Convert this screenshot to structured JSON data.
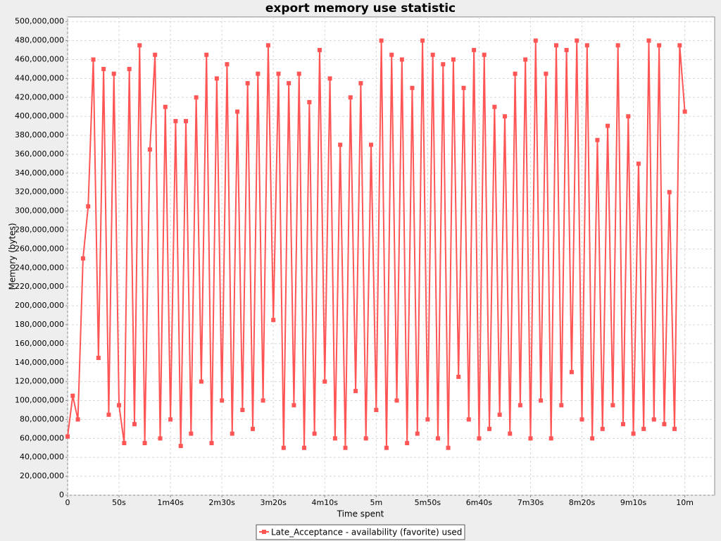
{
  "chart_data": {
    "type": "line",
    "title": "export memory use statistic",
    "x_label": "Time spent",
    "y_label": "Memory (bytes)",
    "x": [
      0,
      5,
      10,
      15,
      20,
      25,
      30,
      35,
      40,
      45,
      50,
      55,
      60,
      65,
      70,
      75,
      80,
      85,
      90,
      95,
      100,
      105,
      110,
      115,
      120,
      125,
      130,
      135,
      140,
      145,
      150,
      155,
      160,
      165,
      170,
      175,
      180,
      185,
      190,
      195,
      200,
      205,
      210,
      215,
      220,
      225,
      230,
      235,
      240,
      245,
      250,
      255,
      260,
      265,
      270,
      275,
      280,
      285,
      290,
      295,
      300,
      305,
      310,
      315,
      320,
      325,
      330,
      335,
      340,
      345,
      350,
      355,
      360,
      365,
      370,
      375,
      380,
      385,
      390,
      395,
      400,
      405,
      410,
      415,
      420,
      425,
      430,
      435,
      440,
      445,
      450,
      455,
      460,
      465,
      470,
      475,
      480,
      485,
      490,
      495,
      500,
      505,
      510,
      515,
      520,
      525,
      530,
      535,
      540,
      545,
      550,
      555,
      560,
      565,
      570,
      575,
      580,
      585,
      590,
      595,
      600
    ],
    "series": [
      {
        "name": "Late_Acceptance - availability (favorite) used",
        "color": "#ff5555",
        "values": [
          62000000,
          105000000,
          80000000,
          250000000,
          305000000,
          460000000,
          145000000,
          450000000,
          85000000,
          445000000,
          95000000,
          55000000,
          450000000,
          75000000,
          475000000,
          55000000,
          365000000,
          465000000,
          60000000,
          410000000,
          80000000,
          395000000,
          52000000,
          395000000,
          65000000,
          420000000,
          120000000,
          465000000,
          55000000,
          440000000,
          100000000,
          455000000,
          65000000,
          405000000,
          90000000,
          435000000,
          70000000,
          445000000,
          100000000,
          475000000,
          185000000,
          445000000,
          50000000,
          435000000,
          95000000,
          445000000,
          50000000,
          415000000,
          65000000,
          470000000,
          120000000,
          440000000,
          60000000,
          370000000,
          50000000,
          420000000,
          110000000,
          435000000,
          60000000,
          370000000,
          90000000,
          480000000,
          50000000,
          465000000,
          100000000,
          460000000,
          55000000,
          430000000,
          65000000,
          480000000,
          80000000,
          465000000,
          60000000,
          455000000,
          50000000,
          460000000,
          125000000,
          430000000,
          80000000,
          470000000,
          60000000,
          465000000,
          70000000,
          410000000,
          85000000,
          400000000,
          65000000,
          445000000,
          95000000,
          460000000,
          60000000,
          480000000,
          100000000,
          445000000,
          60000000,
          475000000,
          95000000,
          470000000,
          130000000,
          480000000,
          80000000,
          475000000,
          60000000,
          375000000,
          70000000,
          390000000,
          95000000,
          475000000,
          75000000,
          400000000,
          65000000,
          350000000,
          70000000,
          480000000,
          80000000,
          475000000,
          75000000,
          320000000,
          70000000,
          475000000,
          405000000
        ]
      }
    ],
    "xlim": [
      0,
      629
    ],
    "xticks": [
      0,
      {
        "value": 50,
        "label": "50s"
      },
      {
        "value": 100,
        "label": "1m40s"
      },
      {
        "value": 150,
        "label": "2m30s"
      },
      {
        "value": 200,
        "label": "3m20s"
      },
      {
        "value": 250,
        "label": "4m10s"
      },
      {
        "value": 300,
        "label": "5m"
      },
      {
        "value": 350,
        "label": "5m50s"
      },
      {
        "value": 400,
        "label": "6m40s"
      },
      {
        "value": 450,
        "label": "7m30s"
      },
      {
        "value": 500,
        "label": "8m20s"
      },
      {
        "value": 550,
        "label": "9m10s"
      },
      {
        "value": 600,
        "label": "10m"
      }
    ],
    "ylim": [
      0,
      505000000
    ],
    "yticks": [
      0,
      {
        "value": 20000000,
        "label": "20,000,000"
      },
      {
        "value": 40000000,
        "label": "40,000,000"
      },
      {
        "value": 60000000,
        "label": "60,000,000"
      },
      {
        "value": 80000000,
        "label": "80,000,000"
      },
      {
        "value": 100000000,
        "label": "100,000,000"
      },
      {
        "value": 120000000,
        "label": "120,000,000"
      },
      {
        "value": 140000000,
        "label": "140,000,000"
      },
      {
        "value": 160000000,
        "label": "160,000,000"
      },
      {
        "value": 180000000,
        "label": "180,000,000"
      },
      {
        "value": 200000000,
        "label": "200,000,000"
      },
      {
        "value": 220000000,
        "label": "220,000,000"
      },
      {
        "value": 240000000,
        "label": "240,000,000"
      },
      {
        "value": 260000000,
        "label": "260,000,000"
      },
      {
        "value": 280000000,
        "label": "280,000,000"
      },
      {
        "value": 300000000,
        "label": "300,000,000"
      },
      {
        "value": 320000000,
        "label": "320,000,000"
      },
      {
        "value": 340000000,
        "label": "340,000,000"
      },
      {
        "value": 360000000,
        "label": "360,000,000"
      },
      {
        "value": 380000000,
        "label": "380,000,000"
      },
      {
        "value": 400000000,
        "label": "400,000,000"
      },
      {
        "value": 420000000,
        "label": "420,000,000"
      },
      {
        "value": 440000000,
        "label": "440,000,000"
      },
      {
        "value": 460000000,
        "label": "460,000,000"
      },
      {
        "value": 480000000,
        "label": "480,000,000"
      },
      {
        "value": 500000000,
        "label": "500,000,000"
      }
    ],
    "grid": true,
    "legend": "bottom"
  }
}
